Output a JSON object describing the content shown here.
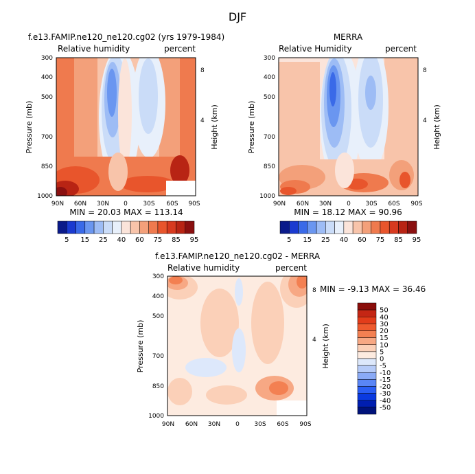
{
  "figure": {
    "season": "DJF"
  },
  "colors": {
    "blue_ramp": [
      "#0a1a8a",
      "#1a3ad0",
      "#3a6ae8",
      "#6a96f0",
      "#9dbcf5",
      "#cadcf8",
      "#e8f0fb"
    ],
    "red_ramp": [
      "#fbe4da",
      "#f8c4aa",
      "#f3a07a",
      "#ef7a4e",
      "#e8552c",
      "#d73a1f",
      "#b82414",
      "#8a1010"
    ],
    "diff_blue": [
      "#00127a",
      "#001eb0",
      "#0a3ae0",
      "#2a5ef4",
      "#5a86f6",
      "#8aaaf6",
      "#b6cbf8",
      "#dde8fb"
    ],
    "diff_red": [
      "#fdebe0",
      "#fbd0b8",
      "#f7a884",
      "#f38052",
      "#ee5a2e",
      "#e23c1a",
      "#c42614",
      "#8a0e0a"
    ]
  },
  "chart_data": [
    {
      "type": "heatmap",
      "title": "f.e13.FAMIP.ne120_ne120.cg02 (yrs 1979-1984)",
      "subtitle_left": "Relative humidity",
      "subtitle_right": "percent",
      "xlabel": "",
      "ylabel": "Pressure (mb)",
      "ylabel_right": "Height (km)",
      "x_ticks": [
        "90N",
        "60N",
        "30N",
        "0",
        "30S",
        "60S",
        "90S"
      ],
      "y_ticks": [
        "300",
        "400",
        "500",
        "700",
        "850",
        "1000"
      ],
      "height_ticks": [
        "8",
        "4"
      ],
      "stats": "MIN =  20.03   MAX = 113.14",
      "min": 20.03,
      "max": 113.14
    },
    {
      "type": "heatmap",
      "title": "MERRA",
      "subtitle_left": "Relative Humidity",
      "subtitle_right": "percent",
      "xlabel": "",
      "ylabel": "Pressure (mb)",
      "ylabel_right": "Height (km)",
      "x_ticks": [
        "90N",
        "60N",
        "30N",
        "0",
        "30S",
        "60S",
        "90S"
      ],
      "y_ticks": [
        "300",
        "400",
        "500",
        "700",
        "850",
        "1000"
      ],
      "height_ticks": [
        "8",
        "4"
      ],
      "stats": "MIN =  18.12   MAX =  90.96",
      "min": 18.12,
      "max": 90.96
    },
    {
      "type": "heatmap",
      "title": "f.e13.FAMIP.ne120_ne120.cg02 - MERRA",
      "subtitle_left": "Relative humidity",
      "subtitle_right": "percent",
      "xlabel": "",
      "ylabel": "Pressure (mb)",
      "ylabel_right": "Height (km)",
      "x_ticks": [
        "90N",
        "60N",
        "30N",
        "0",
        "30S",
        "60S",
        "90S"
      ],
      "y_ticks": [
        "300",
        "400",
        "500",
        "700",
        "850",
        "1000"
      ],
      "height_ticks": [
        "8",
        "4"
      ],
      "stats": "MIN =  -9.13   MAX =  36.46",
      "min": -9.13,
      "max": 36.46
    }
  ],
  "colorbar_top": {
    "labels": [
      "5",
      "15",
      "25",
      "40",
      "60",
      "75",
      "85",
      "95"
    ]
  },
  "colorbar_diff": {
    "labels": [
      "50",
      "40",
      "30",
      "20",
      "15",
      "10",
      "5",
      "0",
      "-5",
      "-10",
      "-15",
      "-20",
      "-30",
      "-40",
      "-50"
    ]
  }
}
